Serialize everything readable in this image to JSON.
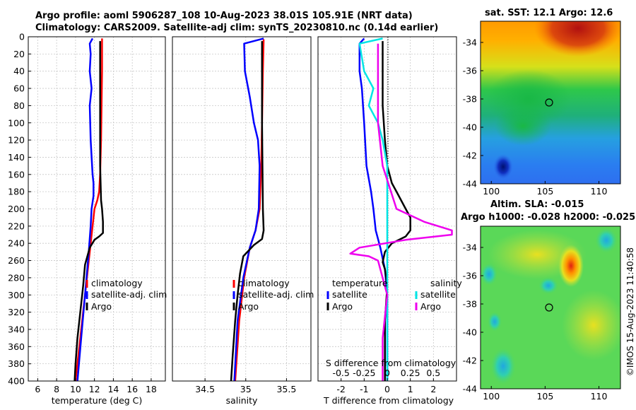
{
  "header": {
    "line1": "Argo profile: aoml 5906287_108 10-Aug-2023 38.01S 105.91E (NRT data)",
    "line2": "Climatology: CARS2009. Satellite-adj clim: synTS_20230810.nc (0.14d earlier)"
  },
  "map_titles": {
    "sst": "sat. SST: 12.1 Argo: 12.6",
    "sla1": "Altim. SLA: -0.015",
    "sla2": "Argo h1000: -0.028 h2000: -0.025"
  },
  "side_label": "©IMOS 15-Aug-2023 11:40:58",
  "colors": {
    "climatology": "#ff0000",
    "satellite": "#0000ff",
    "argo": "#000000",
    "sal_satellite": "#00e5e5",
    "sal_argo": "#ee00ee"
  },
  "chart_data": [
    {
      "type": "line",
      "panel": "temperature",
      "xlabel": "temperature (deg C)",
      "xlim": [
        5,
        19.5
      ],
      "xticks": [
        6,
        8,
        10,
        12,
        14,
        16,
        18
      ],
      "ylim": [
        400,
        0
      ],
      "yticks": [
        0,
        20,
        40,
        60,
        80,
        100,
        120,
        140,
        160,
        180,
        200,
        220,
        240,
        260,
        280,
        300,
        320,
        340,
        360,
        380,
        400
      ],
      "legend": {
        "position": "middle-left",
        "items": [
          "climatology",
          "satellite-adj. clim",
          "Argo"
        ]
      },
      "series": [
        {
          "name": "climatology",
          "color_key": "climatology",
          "points": [
            [
              12.8,
              2
            ],
            [
              12.8,
              40
            ],
            [
              12.7,
              120
            ],
            [
              12.6,
              160
            ],
            [
              12.5,
              180
            ],
            [
              12.3,
              190
            ],
            [
              12.0,
              200
            ],
            [
              11.8,
              220
            ],
            [
              11.5,
              250
            ],
            [
              11.0,
              300
            ],
            [
              10.5,
              350
            ],
            [
              10.0,
              400
            ]
          ]
        },
        {
          "name": "satellite-adj. clim",
          "color_key": "satellite",
          "points": [
            [
              11.8,
              2
            ],
            [
              11.5,
              8
            ],
            [
              11.6,
              20
            ],
            [
              11.5,
              40
            ],
            [
              11.7,
              60
            ],
            [
              11.5,
              80
            ],
            [
              11.6,
              120
            ],
            [
              11.8,
              160
            ],
            [
              11.9,
              170
            ],
            [
              11.9,
              185
            ],
            [
              11.7,
              200
            ],
            [
              11.6,
              220
            ],
            [
              11.4,
              250
            ],
            [
              11.0,
              300
            ],
            [
              10.6,
              350
            ],
            [
              10.2,
              400
            ]
          ]
        },
        {
          "name": "Argo",
          "color_key": "argo",
          "points": [
            [
              12.6,
              5
            ],
            [
              12.6,
              40
            ],
            [
              12.6,
              100
            ],
            [
              12.6,
              150
            ],
            [
              12.7,
              190
            ],
            [
              12.8,
              200
            ],
            [
              12.9,
              215
            ],
            [
              12.9,
              228
            ],
            [
              12.5,
              232
            ],
            [
              12.0,
              236
            ],
            [
              11.5,
              245
            ],
            [
              11.0,
              265
            ],
            [
              10.8,
              290
            ],
            [
              10.5,
              320
            ],
            [
              10.2,
              350
            ],
            [
              10.0,
              380
            ],
            [
              9.9,
              400
            ]
          ]
        }
      ]
    },
    {
      "type": "line",
      "panel": "salinity",
      "xlabel": "salinity",
      "xlim": [
        34.1,
        35.8
      ],
      "xticks": [
        34.5,
        35,
        35.5
      ],
      "ylim": [
        400,
        0
      ],
      "legend": {
        "position": "middle-left",
        "items": [
          "climatology",
          "satellite-adj. clim",
          "Argo"
        ]
      },
      "series": [
        {
          "name": "climatology",
          "color_key": "climatology",
          "points": [
            [
              35.22,
              3
            ],
            [
              35.21,
              40
            ],
            [
              35.2,
              100
            ],
            [
              35.19,
              150
            ],
            [
              35.17,
              200
            ],
            [
              35.12,
              225
            ],
            [
              35.05,
              245
            ],
            [
              34.98,
              280
            ],
            [
              34.92,
              330
            ],
            [
              34.87,
              400
            ]
          ]
        },
        {
          "name": "satellite-adj. clim",
          "color_key": "satellite",
          "points": [
            [
              35.22,
              2
            ],
            [
              35.1,
              5
            ],
            [
              34.98,
              8
            ],
            [
              34.99,
              40
            ],
            [
              35.05,
              70
            ],
            [
              35.1,
              100
            ],
            [
              35.15,
              120
            ],
            [
              35.17,
              150
            ],
            [
              35.16,
              200
            ],
            [
              35.12,
              225
            ],
            [
              35.05,
              245
            ],
            [
              34.97,
              280
            ],
            [
              34.9,
              330
            ],
            [
              34.86,
              400
            ]
          ]
        },
        {
          "name": "Argo",
          "color_key": "argo",
          "points": [
            [
              35.2,
              5
            ],
            [
              35.2,
              100
            ],
            [
              35.21,
              200
            ],
            [
              35.22,
              225
            ],
            [
              35.2,
              235
            ],
            [
              35.1,
              242
            ],
            [
              34.97,
              255
            ],
            [
              34.93,
              275
            ],
            [
              34.9,
              300
            ],
            [
              34.87,
              330
            ],
            [
              34.84,
              370
            ],
            [
              34.82,
              400
            ]
          ]
        }
      ]
    },
    {
      "type": "line",
      "panel": "difference",
      "xlabel": "T difference from climatology",
      "xlim": [
        -3,
        3
      ],
      "xticks": [
        -2,
        -1,
        0,
        1,
        2
      ],
      "top_axis_label": "S difference from climatology",
      "top_ticks": [
        "-0.5",
        "-0.25",
        "0",
        "0.25",
        "0.5"
      ],
      "ylim": [
        400,
        0
      ],
      "legend": {
        "position": "middle",
        "groups": [
          "temperature",
          "salinity"
        ],
        "items": [
          "satellite",
          "Argo",
          "satellite",
          "Argo"
        ]
      },
      "series": [
        {
          "name": "temperature satellite",
          "color_key": "satellite",
          "points": [
            [
              -1.0,
              2
            ],
            [
              -1.2,
              8
            ],
            [
              -1.2,
              40
            ],
            [
              -1.1,
              60
            ],
            [
              -1.0,
              100
            ],
            [
              -0.9,
              150
            ],
            [
              -0.7,
              180
            ],
            [
              -0.6,
              200
            ],
            [
              -0.5,
              225
            ],
            [
              -0.3,
              245
            ],
            [
              -0.1,
              270
            ],
            [
              0.0,
              300
            ],
            [
              0.0,
              400
            ]
          ]
        },
        {
          "name": "temperature Argo",
          "color_key": "argo",
          "points": [
            [
              -0.2,
              5
            ],
            [
              -0.2,
              80
            ],
            [
              -0.1,
              120
            ],
            [
              0.0,
              150
            ],
            [
              0.2,
              170
            ],
            [
              0.4,
              180
            ],
            [
              0.8,
              200
            ],
            [
              1.0,
              210
            ],
            [
              1.0,
              225
            ],
            [
              0.8,
              232
            ],
            [
              0.2,
              240
            ],
            [
              -0.1,
              250
            ],
            [
              -0.2,
              262
            ],
            [
              -0.1,
              270
            ],
            [
              0.0,
              290
            ],
            [
              -0.1,
              330
            ],
            [
              -0.1,
              400
            ]
          ]
        },
        {
          "name": "salinity satellite",
          "color_key": "sal_satellite",
          "points": [
            [
              -0.05,
              2
            ],
            [
              -0.3,
              8
            ],
            [
              -0.25,
              40
            ],
            [
              -0.15,
              60
            ],
            [
              -0.2,
              80
            ],
            [
              -0.1,
              100
            ],
            [
              -0.05,
              120
            ],
            [
              0.0,
              150
            ],
            [
              0.0,
              200
            ],
            [
              0.0,
              250
            ],
            [
              0.0,
              300
            ],
            [
              0.0,
              400
            ]
          ]
        },
        {
          "name": "salinity Argo",
          "color_key": "sal_argo",
          "points": [
            [
              -0.1,
              8
            ],
            [
              -0.1,
              100
            ],
            [
              -0.05,
              150
            ],
            [
              0.1,
              200
            ],
            [
              0.4,
              215
            ],
            [
              0.7,
              225
            ],
            [
              0.7,
              230
            ],
            [
              0.2,
              236
            ],
            [
              -0.3,
              245
            ],
            [
              -0.4,
              252
            ],
            [
              -0.2,
              255
            ],
            [
              -0.1,
              260
            ],
            [
              0.0,
              300
            ],
            [
              -0.05,
              350
            ],
            [
              -0.05,
              400
            ]
          ]
        }
      ]
    },
    {
      "type": "heatmap",
      "panel": "sst_map",
      "title": "sat. SST: 12.1 Argo: 12.6",
      "xlim": [
        99,
        112
      ],
      "ylim": [
        -44,
        -32.5
      ],
      "xticks": [
        100,
        105,
        110
      ],
      "yticks": [
        -34,
        -36,
        -38,
        -40,
        -42,
        -44
      ],
      "marker": {
        "lon": 105.91,
        "lat": -38.01
      }
    },
    {
      "type": "heatmap",
      "panel": "sla_map",
      "title": "Argo h1000: -0.028 h2000: -0.025",
      "xlim": [
        99,
        112
      ],
      "ylim": [
        -44,
        -32.5
      ],
      "xticks": [
        100,
        105,
        110
      ],
      "yticks": [
        -34,
        -36,
        -38,
        -40,
        -42,
        -44
      ],
      "marker": {
        "lon": 105.91,
        "lat": -38.01
      }
    }
  ]
}
